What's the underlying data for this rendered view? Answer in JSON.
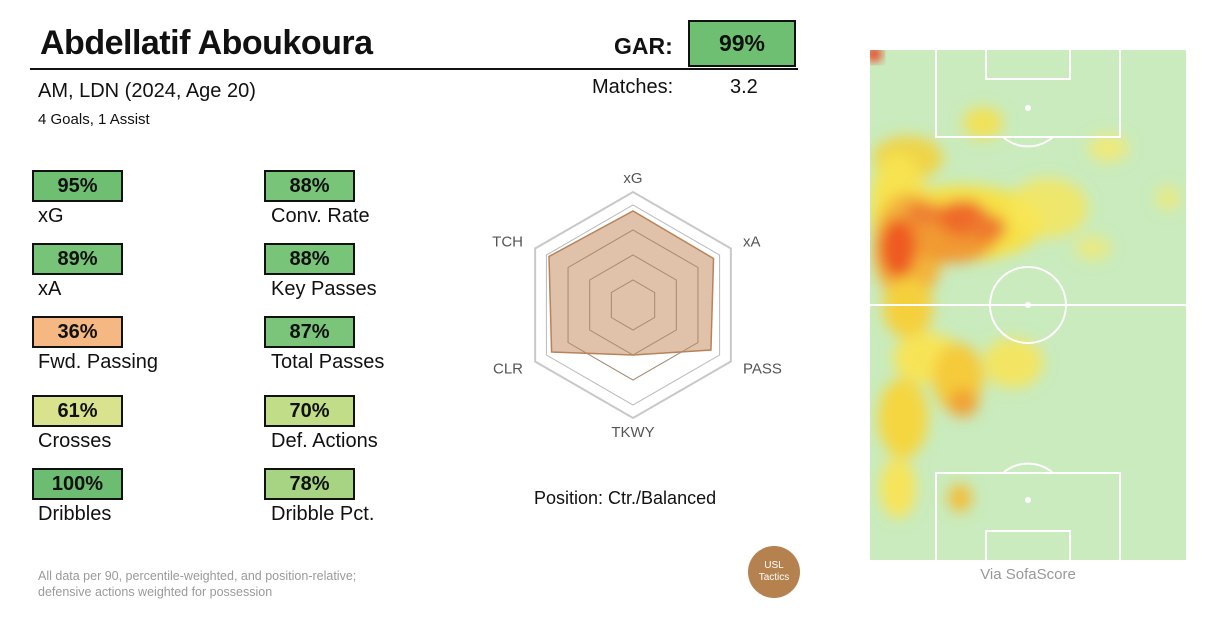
{
  "header": {
    "player_name": "Abdellatif Aboukoura",
    "gar_label": "GAR:",
    "gar_value": "99%",
    "gar_color": "#6fbf73",
    "subtitle": "AM, LDN (2024, Age 20)",
    "subtitle2": "4 Goals,  1 Assist",
    "matches_label": "Matches:",
    "matches_value": "3.2"
  },
  "metrics": [
    {
      "value": "95%",
      "label": "xG",
      "color": "#6fbf73"
    },
    {
      "value": "88%",
      "label": "Conv. Rate",
      "color": "#78c479"
    },
    {
      "value": "89%",
      "label": "xA",
      "color": "#77c378"
    },
    {
      "value": "88%",
      "label": "Key Passes",
      "color": "#78c479"
    },
    {
      "value": "36%",
      "label": "Fwd. Passing",
      "color": "#f6b882"
    },
    {
      "value": "87%",
      "label": "Total Passes",
      "color": "#7ac57a"
    },
    {
      "value": "61%",
      "label": "Crosses",
      "color": "#d9e38e"
    },
    {
      "value": "70%",
      "label": "Def. Actions",
      "color": "#c2dd87"
    },
    {
      "value": "100%",
      "label": "Dribbles",
      "color": "#6cbc71"
    },
    {
      "value": "78%",
      "label": "Dribble Pct.",
      "color": "#a7d482"
    }
  ],
  "chart_data": [
    {
      "type": "radar",
      "axes": [
        "xG",
        "xA",
        "PASS",
        "TKWY",
        "CLR",
        "TCH"
      ],
      "values": [
        0.94,
        0.93,
        0.9,
        0.5,
        0.94,
        0.97
      ],
      "range": [
        0,
        1
      ],
      "fill_color": "#d9b79a",
      "stroke_color": "#b9835a"
    },
    {
      "type": "heatmap",
      "source_label": "Via SofaScore",
      "pitch_color": "#c9ebbd"
    }
  ],
  "position_text": "Position: Ctr./Balanced",
  "footnote_line1": "All data per 90, percentile-weighted, and position-relative;",
  "footnote_line2": "defensive actions weighted for possession",
  "logo_line1": "USL",
  "logo_line2": "Tactics"
}
